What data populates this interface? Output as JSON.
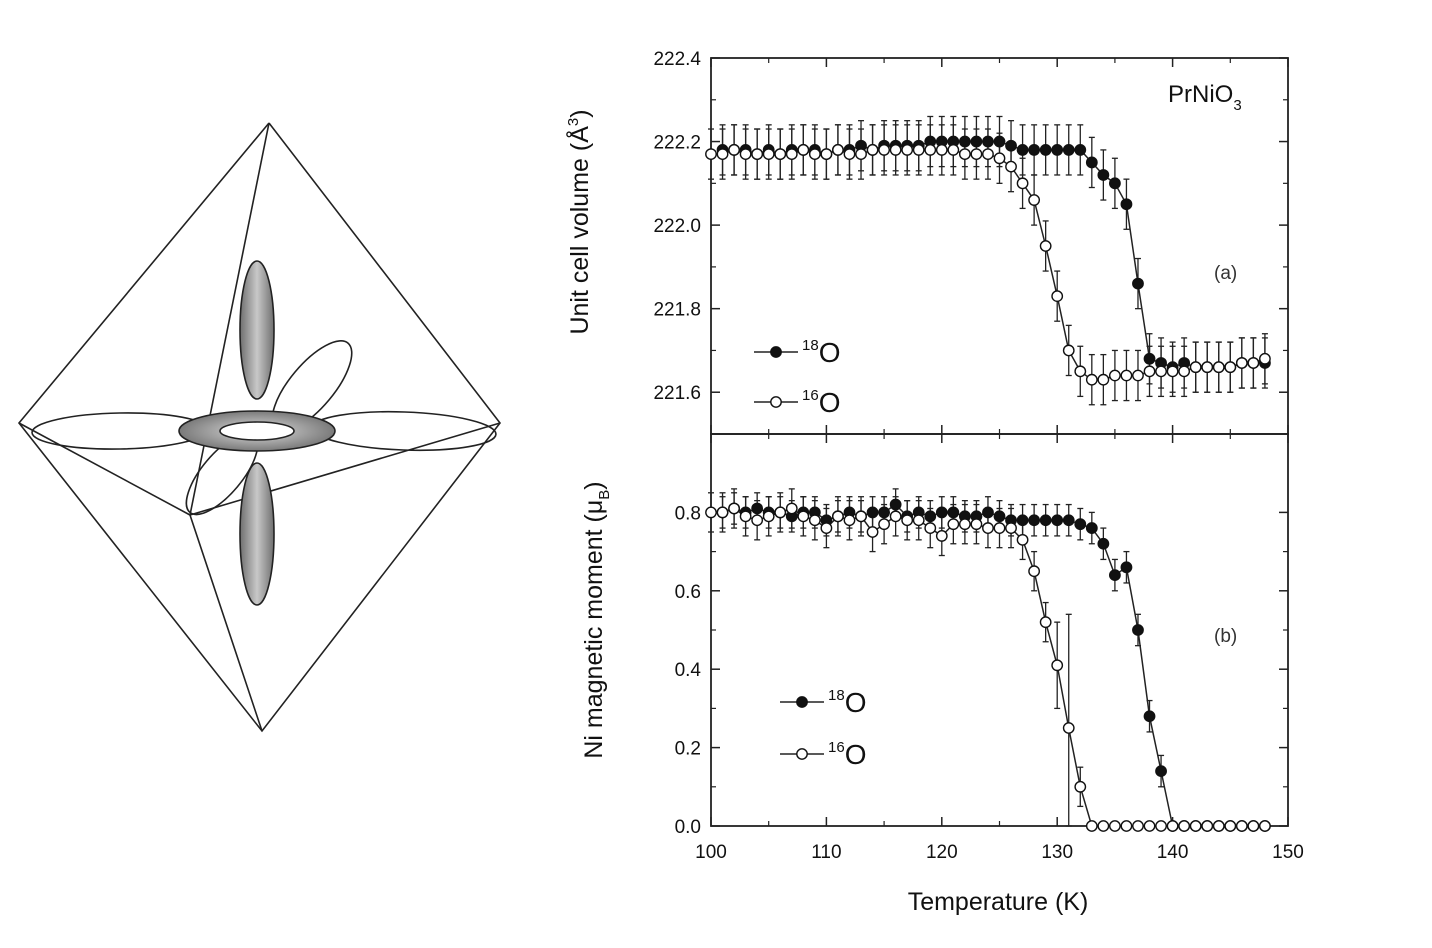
{
  "chart_data": [
    {
      "type": "scatter",
      "panel_label": "(a)",
      "compound": {
        "main": "PrNiO",
        "sub": "3"
      },
      "ylabel": "Unit cell volume (Å",
      "ylabel_sup": "3",
      "ylabel_close": ")",
      "xlim": [
        100,
        150
      ],
      "ylim": [
        221.5,
        222.4
      ],
      "yticks": [
        221.6,
        221.8,
        222.0,
        222.2,
        222.4
      ],
      "ytick_labels": [
        "221.6",
        "221.8",
        "222.0",
        "222.2",
        "222.4"
      ],
      "legend": [
        {
          "iso": "18",
          "el": "O",
          "marker": "filled"
        },
        {
          "iso": "16",
          "el": "O",
          "marker": "open"
        }
      ],
      "series": [
        {
          "name": "18O",
          "marker": "filled",
          "x": [
            101,
            102,
            103,
            104,
            105,
            106,
            107,
            108,
            109,
            110,
            111,
            112,
            113,
            114,
            115,
            116,
            117,
            118,
            119,
            120,
            121,
            122,
            123,
            124,
            125,
            126,
            127,
            128,
            129,
            130,
            131,
            132,
            133,
            134,
            135,
            136,
            137,
            138,
            139,
            140,
            141,
            142,
            143,
            144,
            145,
            146,
            147,
            148
          ],
          "y": [
            222.18,
            222.18,
            222.18,
            222.17,
            222.18,
            222.17,
            222.18,
            222.18,
            222.18,
            222.17,
            222.18,
            222.18,
            222.19,
            222.18,
            222.19,
            222.19,
            222.19,
            222.19,
            222.2,
            222.2,
            222.2,
            222.2,
            222.2,
            222.2,
            222.2,
            222.19,
            222.18,
            222.18,
            222.18,
            222.18,
            222.18,
            222.18,
            222.15,
            222.12,
            222.1,
            222.05,
            221.86,
            221.68,
            221.67,
            221.66,
            221.67,
            221.66,
            221.66,
            221.66,
            221.66,
            221.67,
            221.67,
            221.67
          ],
          "err": 0.06
        },
        {
          "name": "16O",
          "marker": "open",
          "x": [
            100,
            101,
            102,
            103,
            104,
            105,
            106,
            107,
            108,
            109,
            110,
            111,
            112,
            113,
            114,
            115,
            116,
            117,
            118,
            119,
            120,
            121,
            122,
            123,
            124,
            125,
            126,
            127,
            128,
            129,
            130,
            131,
            132,
            133,
            134,
            135,
            136,
            137,
            138,
            139,
            140,
            141,
            142,
            143,
            144,
            145,
            146,
            147,
            148
          ],
          "y": [
            222.17,
            222.17,
            222.18,
            222.17,
            222.17,
            222.17,
            222.17,
            222.17,
            222.18,
            222.17,
            222.17,
            222.18,
            222.17,
            222.17,
            222.18,
            222.18,
            222.18,
            222.18,
            222.18,
            222.18,
            222.18,
            222.18,
            222.17,
            222.17,
            222.17,
            222.16,
            222.14,
            222.1,
            222.06,
            221.95,
            221.83,
            221.7,
            221.65,
            221.63,
            221.63,
            221.64,
            221.64,
            221.64,
            221.65,
            221.65,
            221.65,
            221.65,
            221.66,
            221.66,
            221.66,
            221.66,
            221.67,
            221.67,
            221.68
          ],
          "err": 0.06
        }
      ]
    },
    {
      "type": "scatter",
      "panel_label": "(b)",
      "ylabel": "Ni magnetic moment (μ",
      "ylabel_sub": "B",
      "ylabel_close": ")",
      "xlabel": "Temperature (K)",
      "xlim": [
        100,
        150
      ],
      "ylim": [
        0,
        1.0
      ],
      "xticks": [
        100,
        110,
        120,
        130,
        140,
        150
      ],
      "xtick_labels": [
        "100",
        "110",
        "120",
        "130",
        "140",
        "150"
      ],
      "yticks": [
        0.0,
        0.2,
        0.4,
        0.6,
        0.8
      ],
      "ytick_labels": [
        "0.0",
        "0.2",
        "0.4",
        "0.6",
        "0.8"
      ],
      "legend": [
        {
          "iso": "18",
          "el": "O",
          "marker": "filled"
        },
        {
          "iso": "16",
          "el": "O",
          "marker": "open"
        }
      ],
      "series": [
        {
          "name": "18O",
          "marker": "filled",
          "x": [
            101,
            102,
            103,
            104,
            105,
            106,
            107,
            108,
            109,
            110,
            111,
            112,
            113,
            114,
            115,
            116,
            117,
            118,
            119,
            120,
            121,
            122,
            123,
            124,
            125,
            126,
            127,
            128,
            129,
            130,
            131,
            132,
            133,
            134,
            135,
            136,
            137,
            138,
            139,
            140,
            141,
            142,
            143,
            144,
            145,
            146,
            147,
            148
          ],
          "y": [
            0.8,
            0.81,
            0.8,
            0.81,
            0.8,
            0.8,
            0.79,
            0.8,
            0.8,
            0.78,
            0.79,
            0.8,
            0.79,
            0.8,
            0.8,
            0.82,
            0.79,
            0.8,
            0.79,
            0.8,
            0.8,
            0.79,
            0.79,
            0.8,
            0.79,
            0.78,
            0.78,
            0.78,
            0.78,
            0.78,
            0.78,
            0.77,
            0.76,
            0.72,
            0.64,
            0.66,
            0.5,
            0.28,
            0.14,
            0.0,
            0.0,
            0.0,
            0.0,
            0.0,
            0.0,
            0.0,
            0.0,
            0.0
          ],
          "err": 0.04
        },
        {
          "name": "16O",
          "marker": "open",
          "x": [
            100,
            101,
            102,
            103,
            104,
            105,
            106,
            107,
            108,
            109,
            110,
            111,
            112,
            113,
            114,
            115,
            116,
            117,
            118,
            119,
            120,
            121,
            122,
            123,
            124,
            125,
            126,
            127,
            128,
            129,
            130,
            131,
            132,
            133,
            134,
            135,
            136,
            137,
            138,
            139,
            140,
            141,
            142,
            143,
            144,
            145,
            146,
            147,
            148
          ],
          "y": [
            0.8,
            0.8,
            0.81,
            0.79,
            0.78,
            0.79,
            0.8,
            0.81,
            0.79,
            0.78,
            0.76,
            0.79,
            0.78,
            0.79,
            0.75,
            0.77,
            0.79,
            0.78,
            0.78,
            0.76,
            0.74,
            0.77,
            0.77,
            0.77,
            0.76,
            0.76,
            0.76,
            0.73,
            0.65,
            0.52,
            0.41,
            0.25,
            0.1,
            0.0,
            0.0,
            0.0,
            0.0,
            0.0,
            0.0,
            0.0,
            0.0,
            0.0,
            0.0,
            0.0,
            0.0,
            0.0,
            0.0,
            0.0,
            0.0
          ],
          "err": 0.05,
          "err_big": {
            "x": [
              130,
              131
            ],
            "err": [
              0.11,
              0.29
            ]
          }
        }
      ]
    }
  ],
  "orbital_diagram": {
    "description_icon": "octahedron-orbital-icon"
  }
}
